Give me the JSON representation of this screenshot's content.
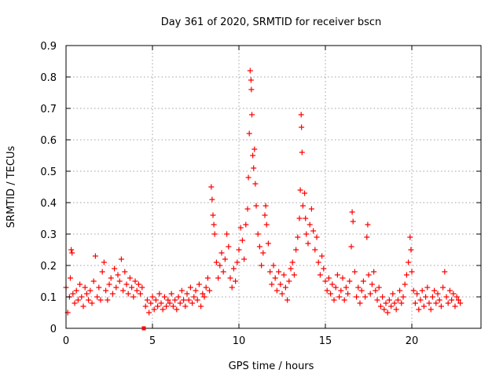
{
  "chart_data": {
    "type": "scatter",
    "title": "Day 361 of 2020, SRMTID for receiver bscn",
    "xlabel": "GPS time / hours",
    "ylabel": "SRMTID / TECUs",
    "xlim": [
      0,
      24
    ],
    "ylim": [
      0,
      0.9
    ],
    "grid": true,
    "marker": "+",
    "color": "#ff0000",
    "x_ticks": [
      0,
      5,
      10,
      15,
      20
    ],
    "x_tick_labels": [
      "0",
      "5",
      "10",
      "15",
      "20"
    ],
    "y_ticks": [
      0,
      0.1,
      0.2,
      0.3,
      0.4,
      0.5,
      0.6,
      0.7,
      0.8,
      0.9
    ],
    "y_tick_labels": [
      "0",
      "0.1",
      "0.2",
      "0.3",
      "0.4",
      "0.5",
      "0.6",
      "0.7",
      "0.8",
      "0.9"
    ],
    "series": [
      {
        "name": "SRMTID",
        "marker": "+",
        "points": [
          [
            0.0,
            0.13
          ],
          [
            0.1,
            0.05
          ],
          [
            0.2,
            0.1
          ],
          [
            0.25,
            0.16
          ],
          [
            0.3,
            0.25
          ],
          [
            0.35,
            0.24
          ],
          [
            0.4,
            0.11
          ],
          [
            0.5,
            0.08
          ],
          [
            0.6,
            0.12
          ],
          [
            0.7,
            0.09
          ],
          [
            0.8,
            0.14
          ],
          [
            0.9,
            0.1
          ],
          [
            1.0,
            0.07
          ],
          [
            1.1,
            0.13
          ],
          [
            1.2,
            0.11
          ],
          [
            1.3,
            0.09
          ],
          [
            1.4,
            0.12
          ],
          [
            1.5,
            0.08
          ],
          [
            1.6,
            0.15
          ],
          [
            1.7,
            0.23
          ],
          [
            1.8,
            0.1
          ],
          [
            1.9,
            0.13
          ],
          [
            2.0,
            0.09
          ],
          [
            2.1,
            0.18
          ],
          [
            2.2,
            0.21
          ],
          [
            2.3,
            0.12
          ],
          [
            2.4,
            0.09
          ],
          [
            2.5,
            0.14
          ],
          [
            2.6,
            0.16
          ],
          [
            2.7,
            0.11
          ],
          [
            2.8,
            0.19
          ],
          [
            2.9,
            0.13
          ],
          [
            3.0,
            0.17
          ],
          [
            3.1,
            0.15
          ],
          [
            3.2,
            0.22
          ],
          [
            3.3,
            0.12
          ],
          [
            3.4,
            0.18
          ],
          [
            3.5,
            0.14
          ],
          [
            3.6,
            0.11
          ],
          [
            3.7,
            0.16
          ],
          [
            3.8,
            0.13
          ],
          [
            3.9,
            0.1
          ],
          [
            4.0,
            0.15
          ],
          [
            4.1,
            0.12
          ],
          [
            4.2,
            0.14
          ],
          [
            4.3,
            0.11
          ],
          [
            4.4,
            0.13
          ],
          [
            4.6,
            0.07
          ],
          [
            4.7,
            0.09
          ],
          [
            4.8,
            0.05
          ],
          [
            4.9,
            0.08
          ],
          [
            5.0,
            0.1
          ],
          [
            5.1,
            0.06
          ],
          [
            5.2,
            0.09
          ],
          [
            5.3,
            0.07
          ],
          [
            5.4,
            0.11
          ],
          [
            5.5,
            0.08
          ],
          [
            5.6,
            0.06
          ],
          [
            5.7,
            0.1
          ],
          [
            5.8,
            0.07
          ],
          [
            5.9,
            0.09
          ],
          [
            6.0,
            0.08
          ],
          [
            6.1,
            0.11
          ],
          [
            6.2,
            0.07
          ],
          [
            6.3,
            0.09
          ],
          [
            6.4,
            0.06
          ],
          [
            6.5,
            0.1
          ],
          [
            6.6,
            0.08
          ],
          [
            6.7,
            0.12
          ],
          [
            6.8,
            0.09
          ],
          [
            6.9,
            0.07
          ],
          [
            7.0,
            0.11
          ],
          [
            7.1,
            0.09
          ],
          [
            7.2,
            0.13
          ],
          [
            7.3,
            0.08
          ],
          [
            7.4,
            0.1
          ],
          [
            7.5,
            0.12
          ],
          [
            7.6,
            0.09
          ],
          [
            7.7,
            0.14
          ],
          [
            7.8,
            0.07
          ],
          [
            7.9,
            0.11
          ],
          [
            8.0,
            0.1
          ],
          [
            8.1,
            0.13
          ],
          [
            8.2,
            0.16
          ],
          [
            8.3,
            0.12
          ],
          [
            8.4,
            0.45
          ],
          [
            8.45,
            0.41
          ],
          [
            8.5,
            0.36
          ],
          [
            8.55,
            0.33
          ],
          [
            8.6,
            0.3
          ],
          [
            8.7,
            0.21
          ],
          [
            8.8,
            0.16
          ],
          [
            8.9,
            0.2
          ],
          [
            9.0,
            0.24
          ],
          [
            9.1,
            0.18
          ],
          [
            9.2,
            0.22
          ],
          [
            9.3,
            0.3
          ],
          [
            9.4,
            0.26
          ],
          [
            9.5,
            0.16
          ],
          [
            9.6,
            0.13
          ],
          [
            9.7,
            0.19
          ],
          [
            9.8,
            0.15
          ],
          [
            9.9,
            0.21
          ],
          [
            10.0,
            0.25
          ],
          [
            10.1,
            0.32
          ],
          [
            10.2,
            0.28
          ],
          [
            10.3,
            0.22
          ],
          [
            10.4,
            0.33
          ],
          [
            10.5,
            0.38
          ],
          [
            10.55,
            0.48
          ],
          [
            10.6,
            0.62
          ],
          [
            10.65,
            0.82
          ],
          [
            10.7,
            0.79
          ],
          [
            10.72,
            0.76
          ],
          [
            10.75,
            0.68
          ],
          [
            10.8,
            0.55
          ],
          [
            10.85,
            0.51
          ],
          [
            10.9,
            0.57
          ],
          [
            10.95,
            0.46
          ],
          [
            11.0,
            0.39
          ],
          [
            11.1,
            0.3
          ],
          [
            11.2,
            0.26
          ],
          [
            11.3,
            0.2
          ],
          [
            11.4,
            0.24
          ],
          [
            11.5,
            0.36
          ],
          [
            11.55,
            0.39
          ],
          [
            11.6,
            0.33
          ],
          [
            11.7,
            0.27
          ],
          [
            11.8,
            0.18
          ],
          [
            11.9,
            0.14
          ],
          [
            12.0,
            0.2
          ],
          [
            12.1,
            0.16
          ],
          [
            12.2,
            0.12
          ],
          [
            12.3,
            0.18
          ],
          [
            12.4,
            0.14
          ],
          [
            12.5,
            0.11
          ],
          [
            12.6,
            0.17
          ],
          [
            12.7,
            0.13
          ],
          [
            12.8,
            0.09
          ],
          [
            12.9,
            0.15
          ],
          [
            13.0,
            0.19
          ],
          [
            13.1,
            0.21
          ],
          [
            13.2,
            0.17
          ],
          [
            13.3,
            0.25
          ],
          [
            13.4,
            0.29
          ],
          [
            13.5,
            0.35
          ],
          [
            13.55,
            0.44
          ],
          [
            13.6,
            0.68
          ],
          [
            13.62,
            0.64
          ],
          [
            13.65,
            0.56
          ],
          [
            13.7,
            0.39
          ],
          [
            13.8,
            0.43
          ],
          [
            13.85,
            0.35
          ],
          [
            13.9,
            0.3
          ],
          [
            14.0,
            0.27
          ],
          [
            14.1,
            0.33
          ],
          [
            14.2,
            0.38
          ],
          [
            14.3,
            0.31
          ],
          [
            14.4,
            0.25
          ],
          [
            14.5,
            0.29
          ],
          [
            14.6,
            0.21
          ],
          [
            14.7,
            0.17
          ],
          [
            14.8,
            0.23
          ],
          [
            14.9,
            0.19
          ],
          [
            15.0,
            0.15
          ],
          [
            15.1,
            0.12
          ],
          [
            15.2,
            0.16
          ],
          [
            15.3,
            0.11
          ],
          [
            15.4,
            0.14
          ],
          [
            15.5,
            0.09
          ],
          [
            15.6,
            0.13
          ],
          [
            15.7,
            0.17
          ],
          [
            15.8,
            0.1
          ],
          [
            15.9,
            0.12
          ],
          [
            16.0,
            0.16
          ],
          [
            16.1,
            0.09
          ],
          [
            16.2,
            0.13
          ],
          [
            16.3,
            0.11
          ],
          [
            16.4,
            0.15
          ],
          [
            16.5,
            0.26
          ],
          [
            16.55,
            0.37
          ],
          [
            16.6,
            0.34
          ],
          [
            16.7,
            0.18
          ],
          [
            16.8,
            0.1
          ],
          [
            16.9,
            0.13
          ],
          [
            17.0,
            0.08
          ],
          [
            17.1,
            0.12
          ],
          [
            17.2,
            0.15
          ],
          [
            17.3,
            0.1
          ],
          [
            17.4,
            0.29
          ],
          [
            17.45,
            0.33
          ],
          [
            17.5,
            0.17
          ],
          [
            17.6,
            0.11
          ],
          [
            17.7,
            0.14
          ],
          [
            17.8,
            0.18
          ],
          [
            17.9,
            0.12
          ],
          [
            18.0,
            0.09
          ],
          [
            18.1,
            0.13
          ],
          [
            18.2,
            0.07
          ],
          [
            18.3,
            0.1
          ],
          [
            18.4,
            0.06
          ],
          [
            18.5,
            0.08
          ],
          [
            18.6,
            0.05
          ],
          [
            18.7,
            0.09
          ],
          [
            18.8,
            0.07
          ],
          [
            18.9,
            0.11
          ],
          [
            19.0,
            0.08
          ],
          [
            19.1,
            0.06
          ],
          [
            19.2,
            0.09
          ],
          [
            19.3,
            0.12
          ],
          [
            19.4,
            0.08
          ],
          [
            19.5,
            0.1
          ],
          [
            19.6,
            0.14
          ],
          [
            19.7,
            0.17
          ],
          [
            19.8,
            0.21
          ],
          [
            19.9,
            0.29
          ],
          [
            19.95,
            0.25
          ],
          [
            20.0,
            0.18
          ],
          [
            20.1,
            0.12
          ],
          [
            20.2,
            0.08
          ],
          [
            20.3,
            0.11
          ],
          [
            20.4,
            0.06
          ],
          [
            20.5,
            0.09
          ],
          [
            20.6,
            0.12
          ],
          [
            20.7,
            0.07
          ],
          [
            20.8,
            0.1
          ],
          [
            20.9,
            0.13
          ],
          [
            21.0,
            0.08
          ],
          [
            21.1,
            0.06
          ],
          [
            21.2,
            0.1
          ],
          [
            21.3,
            0.12
          ],
          [
            21.4,
            0.08
          ],
          [
            21.5,
            0.11
          ],
          [
            21.6,
            0.09
          ],
          [
            21.7,
            0.07
          ],
          [
            21.8,
            0.13
          ],
          [
            21.9,
            0.18
          ],
          [
            22.0,
            0.1
          ],
          [
            22.1,
            0.08
          ],
          [
            22.2,
            0.12
          ],
          [
            22.3,
            0.09
          ],
          [
            22.4,
            0.11
          ],
          [
            22.5,
            0.07
          ],
          [
            22.6,
            0.1
          ],
          [
            22.7,
            0.09
          ],
          [
            22.8,
            0.08
          ]
        ]
      }
    ],
    "annotations": [
      {
        "type": "square-marker",
        "x": 4.5,
        "y": 0.0
      }
    ]
  }
}
